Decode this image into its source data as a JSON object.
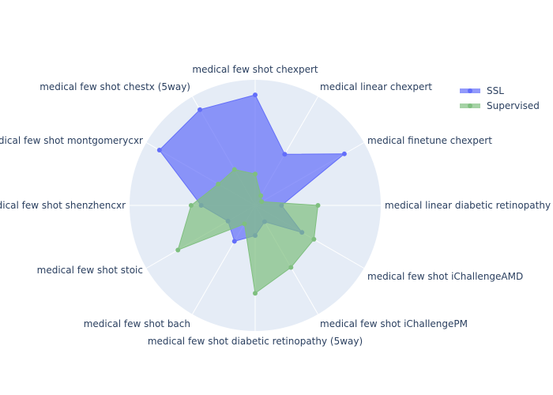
{
  "chart_data": {
    "type": "radar",
    "title": "",
    "categories": [
      "medical linear diabetic retinopathy",
      "medical finetune chexpert",
      "medical linear chexpert",
      "medical few shot chexpert",
      "medical few shot chestx (5way)",
      "medical few shot montgomerycxr",
      "medical few shot shenzhencxr",
      "medical few shot stoic",
      "medical few shot bach",
      "medical few shot diabetic retinopathy (5way)",
      "medical few shot iChallengePM",
      "medical few shot iChallengeAMD"
    ],
    "series": [
      {
        "name": "SSL",
        "color": "#636efa",
        "values": [
          0.21,
          0.82,
          0.47,
          0.88,
          0.88,
          0.88,
          0.43,
          0.25,
          0.33,
          0.24,
          0.15,
          0.43
        ]
      },
      {
        "name": "Supervised",
        "color": "#7fbf7f",
        "values": [
          0.5,
          0.06,
          0.09,
          0.25,
          0.33,
          0.34,
          0.51,
          0.71,
          0.17,
          0.7,
          0.57,
          0.54
        ]
      }
    ],
    "radial_range": [
      0,
      1
    ],
    "angular_gridlines": true,
    "legend_position": "top-right"
  }
}
